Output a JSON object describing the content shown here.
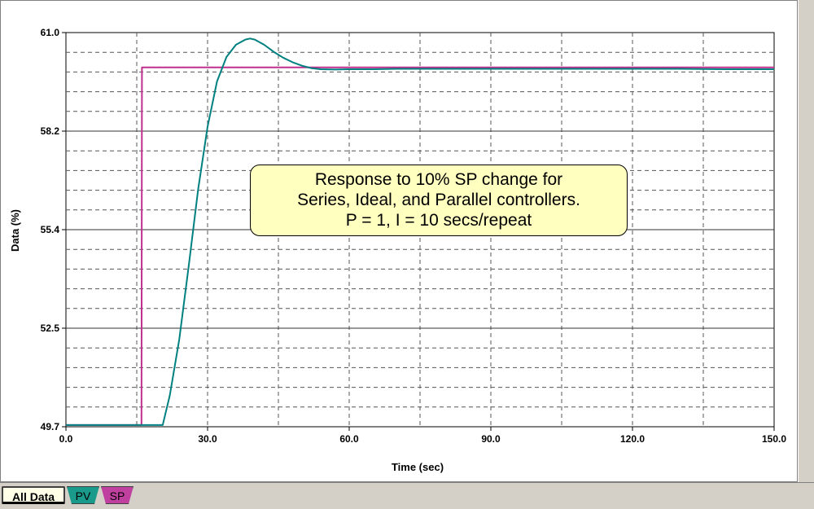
{
  "colors": {
    "pv": "#008080",
    "sp": "#c0308f",
    "tab_pv_bg": "#1a9a8a",
    "tab_sp_bg": "#c040a0",
    "annotation_bg": "#ffffc0",
    "grid": "#555555"
  },
  "tabs": [
    {
      "label": "All Data"
    },
    {
      "label": "PV"
    },
    {
      "label": "SP"
    }
  ],
  "chart_data": {
    "type": "line",
    "title": "",
    "xlabel": "Time (sec)",
    "ylabel": "Data (%)",
    "xlim": [
      0,
      150
    ],
    "ylim": [
      49.7,
      61.0
    ],
    "x_ticks": [
      "0.0",
      "30.0",
      "60.0",
      "90.0",
      "120.0",
      "150.0"
    ],
    "y_ticks": [
      "61.0",
      "58.2",
      "55.4",
      "52.5",
      "49.7"
    ],
    "grid": true,
    "annotation": [
      "Response to 10% SP change for",
      "Series, Ideal, and Parallel controllers.",
      "P = 1, I = 10 secs/repeat"
    ],
    "series": [
      {
        "name": "PV",
        "color": "#008080",
        "x": [
          0,
          16,
          20.5,
          22,
          24,
          26,
          28,
          30,
          32,
          34,
          36,
          38,
          39,
          40,
          42,
          44,
          46,
          48,
          50,
          52,
          54,
          57,
          60,
          65,
          70,
          80,
          90,
          100,
          110,
          120,
          130,
          140,
          150
        ],
        "y": [
          49.75,
          49.75,
          49.75,
          50.6,
          52.2,
          54.3,
          56.5,
          58.3,
          59.6,
          60.3,
          60.65,
          60.8,
          60.83,
          60.8,
          60.65,
          60.45,
          60.28,
          60.15,
          60.05,
          59.98,
          59.95,
          59.94,
          59.95,
          59.95,
          59.96,
          59.96,
          59.96,
          59.96,
          59.96,
          59.96,
          59.96,
          59.95,
          59.95
        ]
      },
      {
        "name": "SP",
        "color": "#c0308f",
        "x": [
          0,
          16,
          16.1,
          40,
          60,
          90,
          120,
          150
        ],
        "y": [
          49.75,
          49.75,
          60.0,
          60.0,
          60.0,
          60.0,
          60.0,
          60.0
        ]
      }
    ]
  }
}
